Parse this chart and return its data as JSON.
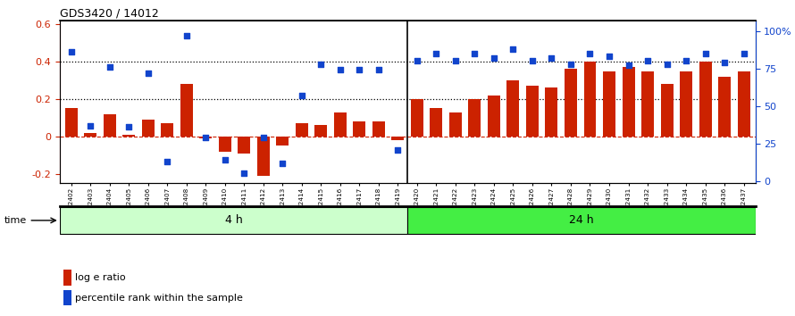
{
  "title": "GDS3420 / 14012",
  "samples": [
    "GSM182402",
    "GSM182403",
    "GSM182404",
    "GSM182405",
    "GSM182406",
    "GSM182407",
    "GSM182408",
    "GSM182409",
    "GSM182410",
    "GSM182411",
    "GSM182412",
    "GSM182413",
    "GSM182414",
    "GSM182415",
    "GSM182416",
    "GSM182417",
    "GSM182418",
    "GSM182419",
    "GSM182420",
    "GSM182421",
    "GSM182422",
    "GSM182423",
    "GSM182424",
    "GSM182425",
    "GSM182426",
    "GSM182427",
    "GSM182428",
    "GSM182429",
    "GSM182430",
    "GSM182431",
    "GSM182432",
    "GSM182433",
    "GSM182434",
    "GSM182435",
    "GSM182436",
    "GSM182437"
  ],
  "log_ratio": [
    0.15,
    0.02,
    0.12,
    0.01,
    0.09,
    0.07,
    0.28,
    -0.01,
    -0.08,
    -0.09,
    -0.21,
    -0.05,
    0.07,
    0.06,
    0.13,
    0.08,
    0.08,
    -0.02,
    0.2,
    0.15,
    0.13,
    0.2,
    0.22,
    0.3,
    0.27,
    0.26,
    0.36,
    0.4,
    0.35,
    0.37,
    0.35,
    0.28,
    0.35,
    0.4,
    0.32,
    0.35
  ],
  "percentile": [
    86,
    37,
    76,
    36,
    72,
    13,
    97,
    29,
    14,
    5,
    29,
    12,
    57,
    78,
    74,
    74,
    74,
    21,
    80,
    85,
    80,
    85,
    82,
    88,
    80,
    82,
    78,
    85,
    83,
    77,
    80,
    78,
    80,
    85,
    79,
    85
  ],
  "group1_count": 18,
  "group2_count": 18,
  "group1_label": "4 h",
  "group2_label": "24 h",
  "bar_color": "#cc2200",
  "dot_color": "#1144cc",
  "group1_bg": "#ccffcc",
  "group2_bg": "#44ee44",
  "ylim_left": [
    -0.25,
    0.62
  ],
  "ylim_right": [
    -1.5,
    107
  ],
  "yticks_left": [
    -0.2,
    0.0,
    0.2,
    0.4,
    0.6
  ],
  "yticks_right_vals": [
    0,
    25,
    50,
    75,
    100
  ],
  "yticks_right_labels": [
    "0",
    "25",
    "50",
    "75",
    "100%"
  ],
  "legend_log": "log e ratio",
  "legend_pct": "percentile rank within the sample"
}
